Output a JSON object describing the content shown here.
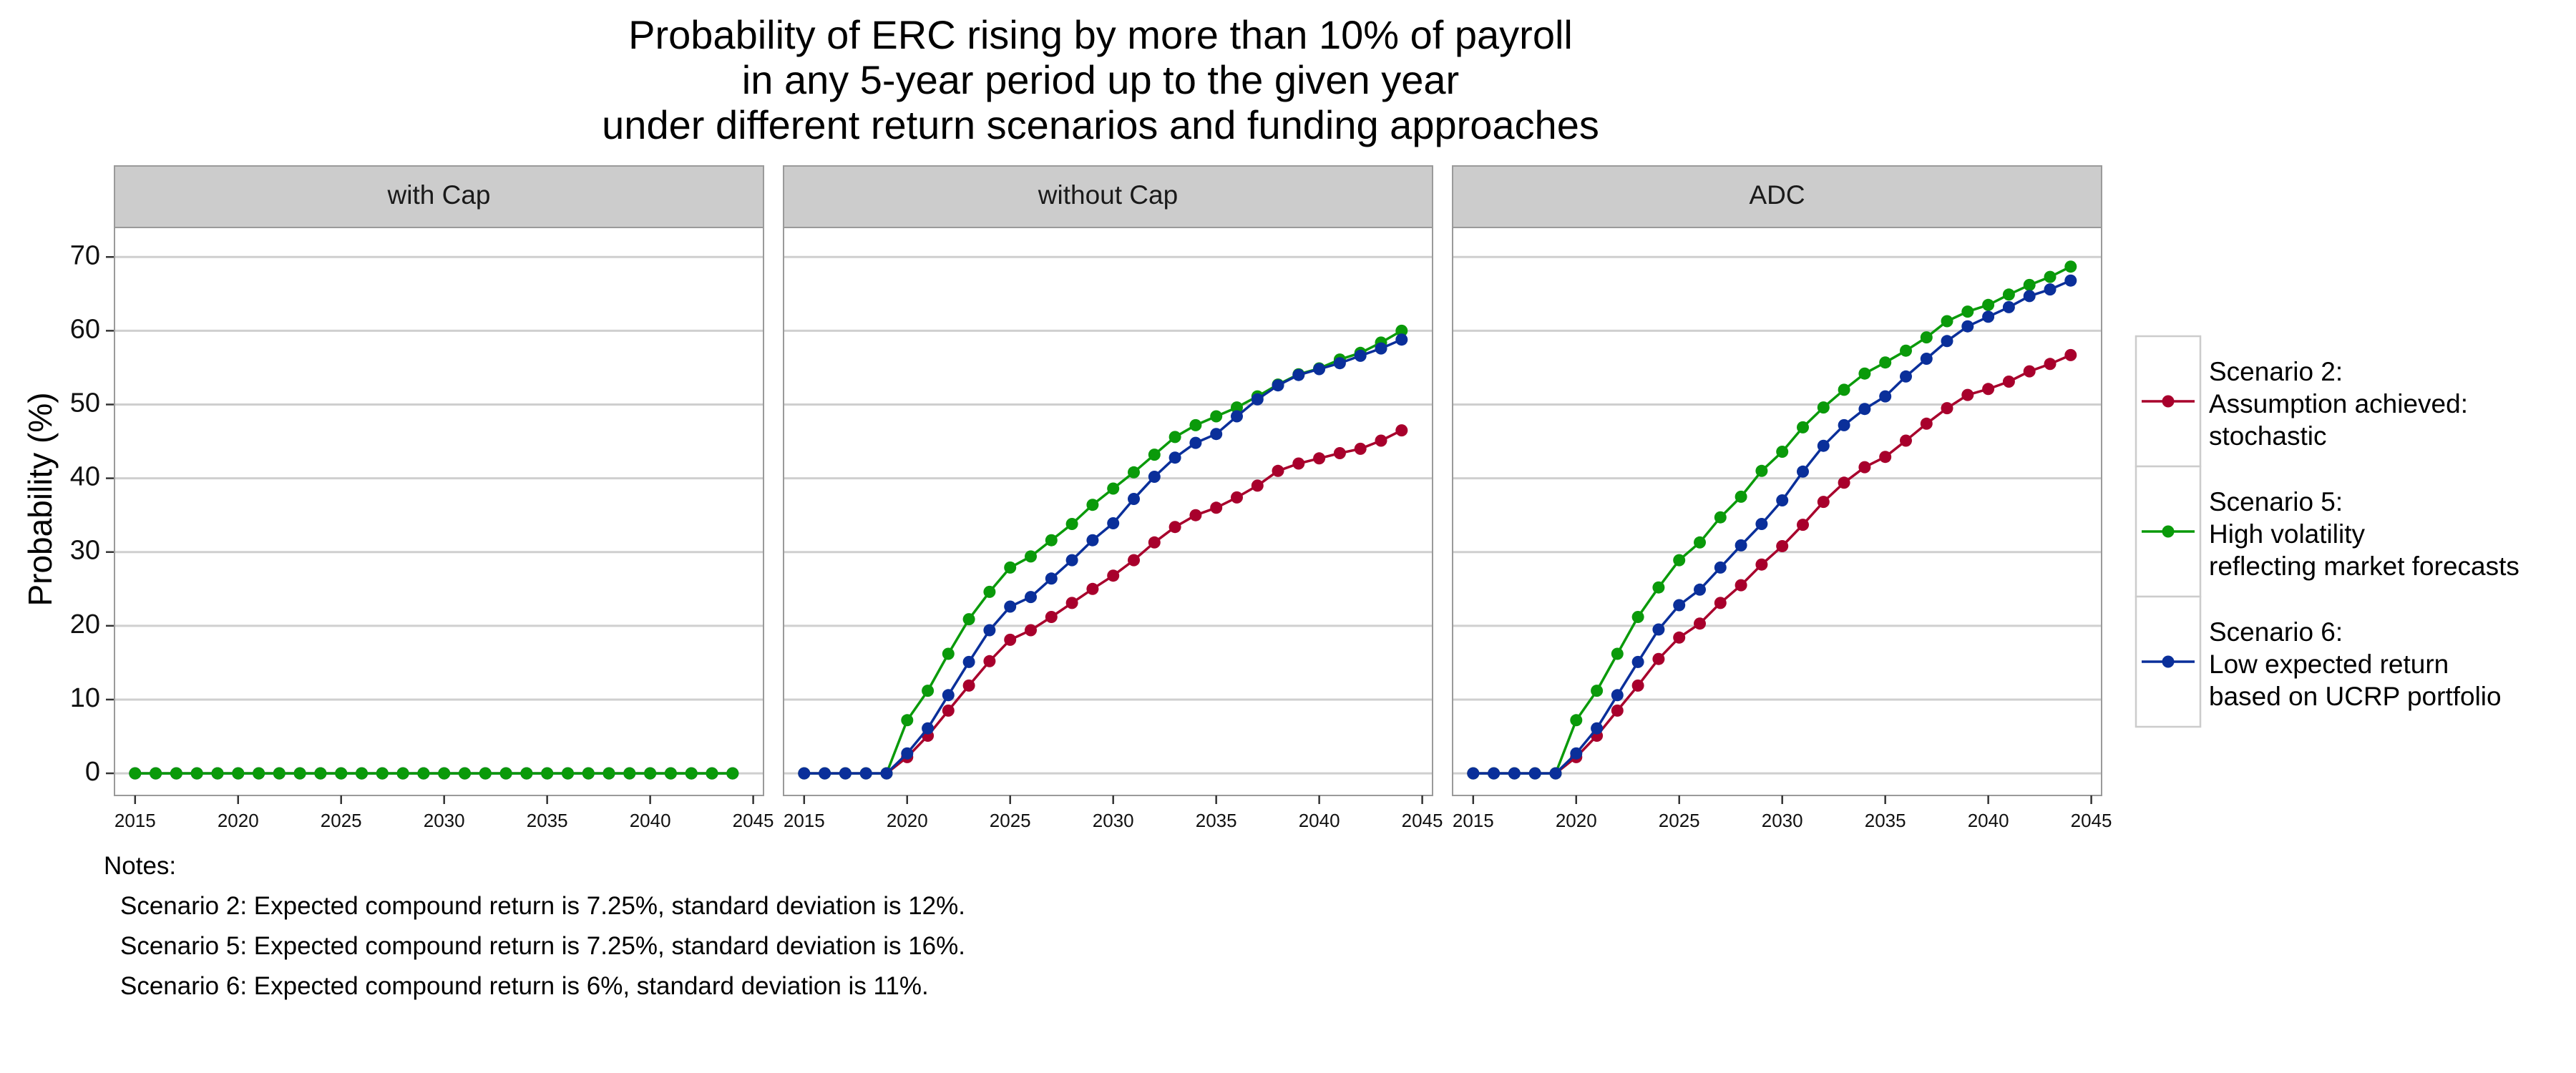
{
  "chart_data": {
    "type": "line",
    "title": [
      "Probability of ERC rising by more than 10% of payroll",
      "in any 5-year period up to the given year",
      "under different return scenarios and funding approaches"
    ],
    "ylabel": "Probability (%)",
    "xlabel": "",
    "xlim": [
      2014,
      2045.5
    ],
    "ylim": [
      -3,
      74
    ],
    "x_ticks": [
      2015,
      2020,
      2025,
      2030,
      2035,
      2040,
      2045
    ],
    "y_ticks": [
      0,
      10,
      20,
      30,
      40,
      50,
      60,
      70
    ],
    "grid": true,
    "legend_position": "right",
    "x": [
      2015,
      2016,
      2017,
      2018,
      2019,
      2020,
      2021,
      2022,
      2023,
      2024,
      2025,
      2026,
      2027,
      2028,
      2029,
      2030,
      2031,
      2032,
      2033,
      2034,
      2035,
      2036,
      2037,
      2038,
      2039,
      2040,
      2041,
      2042,
      2043,
      2044
    ],
    "series_meta": [
      {
        "name": "Scenario 2:\nAssumption achieved:\nstochastic",
        "color": "#a8002c"
      },
      {
        "name": "Scenario 5:\nHigh volatility\nreflecting market forecasts",
        "color": "#0a9a0a"
      },
      {
        "name": "Scenario 6:\nLow expected return\nbased on UCRP portfolio",
        "color": "#0a2f9a"
      }
    ],
    "panels": [
      {
        "label": "with Cap",
        "series": [
          {
            "name": "Scenario 2",
            "values": [
              0,
              0,
              0,
              0,
              0,
              0,
              0,
              0,
              0,
              0,
              0,
              0,
              0,
              0,
              0,
              0,
              0,
              0,
              0,
              0,
              0,
              0,
              0,
              0,
              0,
              0,
              0,
              0,
              0,
              0
            ]
          },
          {
            "name": "Scenario 6",
            "values": [
              0,
              0,
              0,
              0,
              0,
              0,
              0,
              0,
              0,
              0,
              0,
              0,
              0,
              0,
              0,
              0,
              0,
              0,
              0,
              0,
              0,
              0,
              0,
              0,
              0,
              0,
              0,
              0,
              0,
              0
            ]
          },
          {
            "name": "Scenario 5",
            "values": [
              0,
              0,
              0,
              0,
              0,
              0,
              0,
              0,
              0,
              0,
              0,
              0,
              0,
              0,
              0,
              0,
              0,
              0,
              0,
              0,
              0,
              0,
              0,
              0,
              0,
              0,
              0,
              0,
              0,
              0
            ]
          }
        ]
      },
      {
        "label": "without Cap",
        "series": [
          {
            "name": "Scenario 2",
            "values": [
              0,
              0,
              0,
              0,
              0,
              2.2,
              5.1,
              8.5,
              11.9,
              15.2,
              18.1,
              19.4,
              21.2,
              23.1,
              25.0,
              26.8,
              28.9,
              31.3,
              33.4,
              35.0,
              36.0,
              37.4,
              39.0,
              41.0,
              42.0,
              42.7,
              43.4,
              44.0,
              45.1,
              46.5
            ]
          },
          {
            "name": "Scenario 5",
            "values": [
              0,
              0,
              0,
              0,
              0,
              7.2,
              11.2,
              16.2,
              20.9,
              24.6,
              27.9,
              29.4,
              31.6,
              33.8,
              36.4,
              38.6,
              40.8,
              43.2,
              45.6,
              47.2,
              48.4,
              49.6,
              51.1,
              52.7,
              54.1,
              54.9,
              56.1,
              57.0,
              58.4,
              60.0
            ]
          },
          {
            "name": "Scenario 6",
            "values": [
              0,
              0,
              0,
              0,
              0,
              2.7,
              6.1,
              10.6,
              15.1,
              19.4,
              22.6,
              23.9,
              26.4,
              28.9,
              31.6,
              33.9,
              37.2,
              40.2,
              42.8,
              44.8,
              46.0,
              48.4,
              50.7,
              52.6,
              54.0,
              54.8,
              55.6,
              56.6,
              57.6,
              58.8
            ]
          }
        ]
      },
      {
        "label": "ADC",
        "series": [
          {
            "name": "Scenario 2",
            "values": [
              0,
              0,
              0,
              0,
              0,
              2.2,
              5.1,
              8.5,
              11.9,
              15.5,
              18.4,
              20.3,
              23.1,
              25.5,
              28.3,
              30.8,
              33.7,
              36.8,
              39.4,
              41.5,
              42.9,
              45.1,
              47.4,
              49.5,
              51.3,
              52.1,
              53.1,
              54.5,
              55.5,
              56.7
            ]
          },
          {
            "name": "Scenario 5",
            "values": [
              0,
              0,
              0,
              0,
              0,
              7.2,
              11.2,
              16.2,
              21.2,
              25.2,
              28.9,
              31.3,
              34.7,
              37.5,
              41.0,
              43.6,
              46.9,
              49.6,
              52.0,
              54.2,
              55.7,
              57.3,
              59.1,
              61.3,
              62.6,
              63.5,
              64.9,
              66.2,
              67.3,
              68.7
            ]
          },
          {
            "name": "Scenario 6",
            "values": [
              0,
              0,
              0,
              0,
              0,
              2.7,
              6.1,
              10.6,
              15.1,
              19.5,
              22.8,
              24.9,
              27.9,
              30.9,
              33.8,
              37.0,
              40.9,
              44.4,
              47.2,
              49.4,
              51.1,
              53.8,
              56.2,
              58.6,
              60.6,
              61.9,
              63.2,
              64.7,
              65.6,
              66.8
            ]
          }
        ]
      }
    ],
    "notes": [
      "Notes:",
      "Scenario 2: Expected compound return is 7.25%, standard deviation is 12%.",
      "Scenario 5: Expected compound return is 7.25%, standard deviation is 16%.",
      "Scenario 6: Expected compound return is 6%, standard deviation is 11%."
    ]
  }
}
